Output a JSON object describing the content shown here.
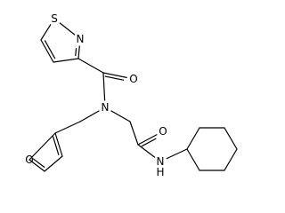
{
  "atoms": [
    {
      "label": "S"
    },
    {
      "label": "N"
    },
    {
      "label": "O"
    },
    {
      "label": "N"
    },
    {
      "label": "O"
    },
    {
      "label": "N"
    },
    {
      "label": "H"
    },
    {
      "label": "O"
    }
  ]
}
